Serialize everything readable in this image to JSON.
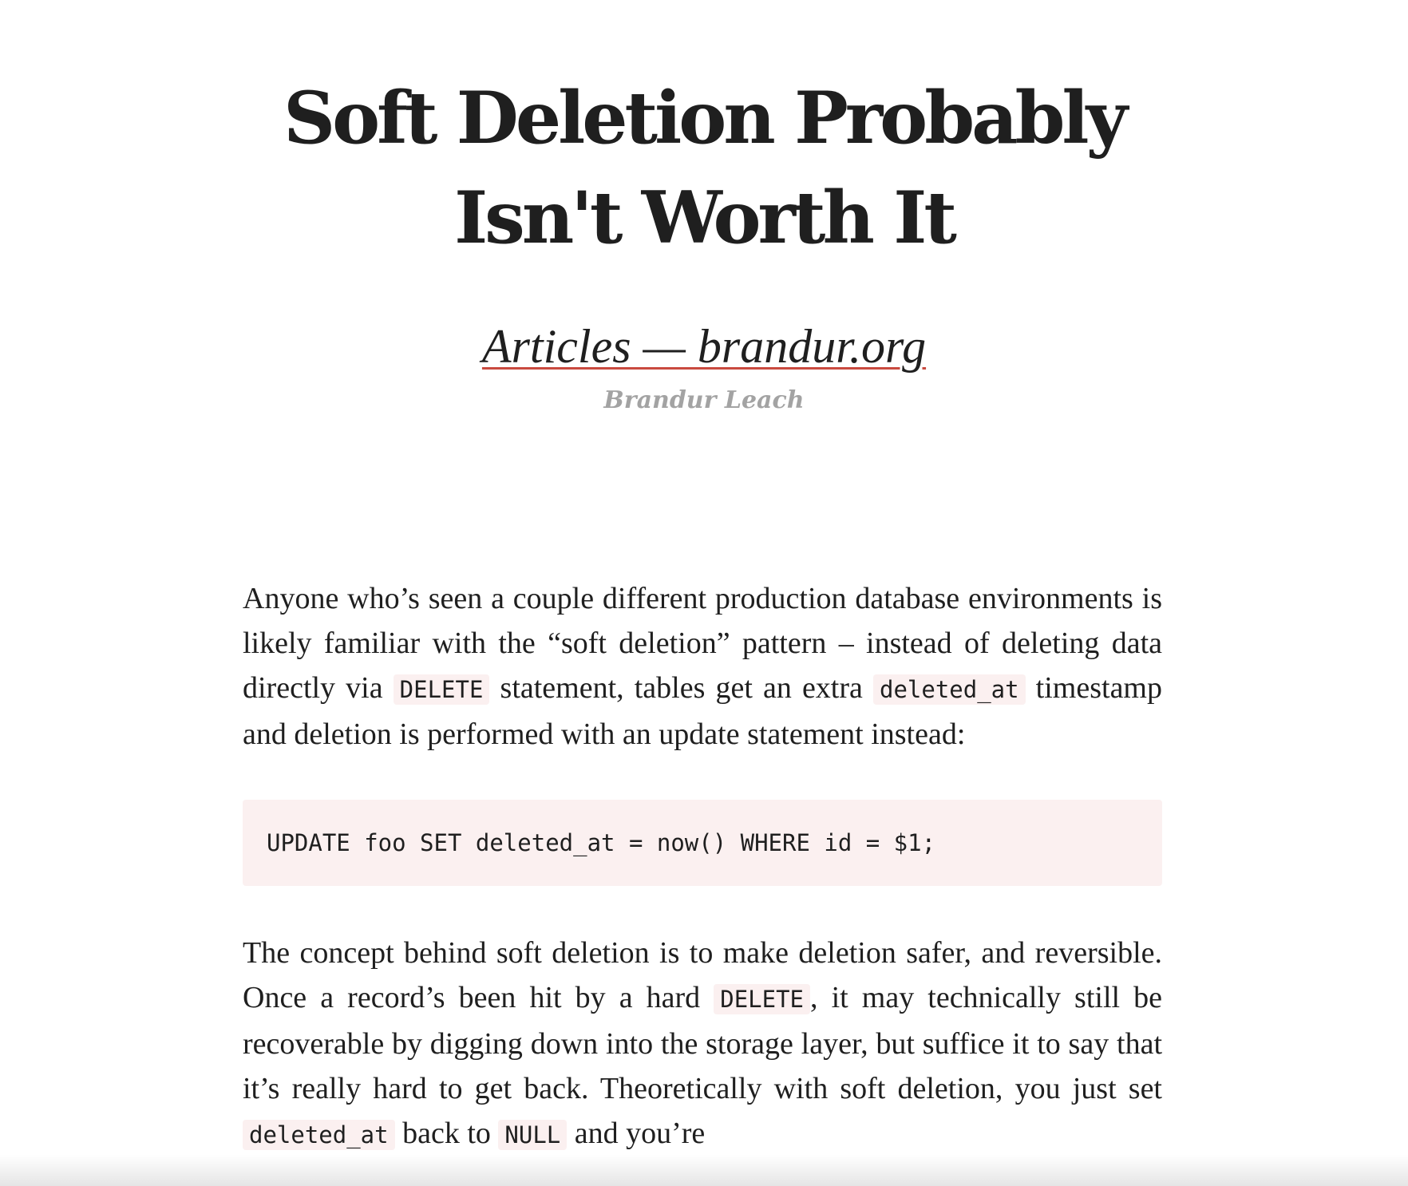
{
  "article": {
    "title_line1": "Soft Deletion Probably",
    "title_line2": "Isn't Worth It",
    "site_link": "Articles — brandur.org",
    "author": "Brandur Leach"
  },
  "paragraphs": [
    {
      "segments": [
        {
          "t": "text",
          "v": "Anyone who’s seen a couple different production database environments is likely familiar with the “soft deletion” pattern – instead of deleting data directly via "
        },
        {
          "t": "code",
          "v": "DELETE"
        },
        {
          "t": "text",
          "v": " statement, tables get an extra "
        },
        {
          "t": "code",
          "v": "deleted_at"
        },
        {
          "t": "text",
          "v": " timestamp and deletion is performed with an update statement instead:"
        }
      ]
    },
    {
      "segments": [
        {
          "t": "text",
          "v": "The concept behind soft deletion is to make deletion safer, and reversible. Once a record’s been hit by a hard "
        },
        {
          "t": "code",
          "v": "DELETE"
        },
        {
          "t": "text",
          "v": ", it may technically still be recoverable by digging down into the storage layer, but suffice it to say that it’s really hard to get back. Theoretically with soft deletion, you just set "
        },
        {
          "t": "code",
          "v": "deleted_at"
        },
        {
          "t": "text",
          "v": " back to "
        },
        {
          "t": "code",
          "v": "NULL"
        },
        {
          "t": "text",
          "v": " and you’re"
        }
      ]
    }
  ],
  "code_block": "UPDATE foo SET deleted_at = now() WHERE id = $1;",
  "colors": {
    "text": "#1f1f1f",
    "muted": "#a3a3a3",
    "underline_accent": "#c94a3f",
    "code_background": "#fbf0f0"
  }
}
